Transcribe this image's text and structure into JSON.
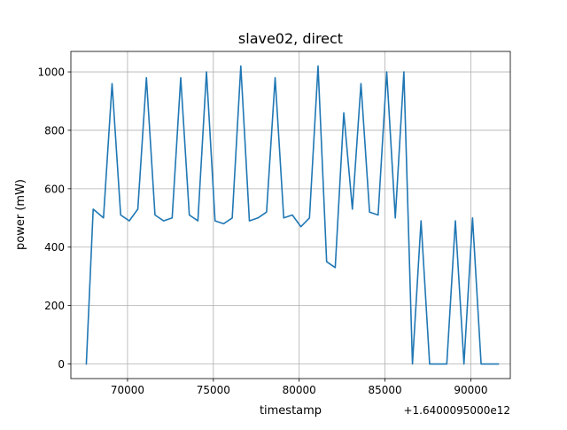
{
  "chart_data": {
    "type": "line",
    "title": "slave02, direct",
    "xlabel": "timestamp",
    "ylabel": "power (mW)",
    "x_offset_text": "+1.6400095000e12",
    "xlim": [
      66700,
      92300
    ],
    "ylim": [
      -50,
      1070
    ],
    "x_ticks": [
      {
        "value": 70000,
        "label": "70000"
      },
      {
        "value": 75000,
        "label": "75000"
      },
      {
        "value": 80000,
        "label": "80000"
      },
      {
        "value": 85000,
        "label": "85000"
      },
      {
        "value": 90000,
        "label": "90000"
      }
    ],
    "y_ticks": [
      {
        "value": 0,
        "label": "0"
      },
      {
        "value": 200,
        "label": "200"
      },
      {
        "value": 400,
        "label": "400"
      },
      {
        "value": 600,
        "label": "600"
      },
      {
        "value": 800,
        "label": "800"
      },
      {
        "value": 1000,
        "label": "1000"
      }
    ],
    "grid": true,
    "series": [
      {
        "color": "#1f77b4",
        "points": [
          [
            67600,
            0
          ],
          [
            68000,
            530
          ],
          [
            68600,
            500
          ],
          [
            69100,
            960
          ],
          [
            69600,
            510
          ],
          [
            70100,
            490
          ],
          [
            70600,
            530
          ],
          [
            71100,
            980
          ],
          [
            71600,
            510
          ],
          [
            72100,
            490
          ],
          [
            72600,
            500
          ],
          [
            73100,
            980
          ],
          [
            73600,
            510
          ],
          [
            74100,
            490
          ],
          [
            74600,
            1000
          ],
          [
            75100,
            490
          ],
          [
            75600,
            480
          ],
          [
            76100,
            500
          ],
          [
            76600,
            1020
          ],
          [
            77100,
            490
          ],
          [
            77600,
            500
          ],
          [
            78100,
            520
          ],
          [
            78600,
            980
          ],
          [
            79100,
            500
          ],
          [
            79600,
            510
          ],
          [
            80100,
            470
          ],
          [
            80600,
            500
          ],
          [
            81100,
            1020
          ],
          [
            81600,
            350
          ],
          [
            82100,
            330
          ],
          [
            82600,
            860
          ],
          [
            83100,
            530
          ],
          [
            83600,
            960
          ],
          [
            84100,
            520
          ],
          [
            84600,
            510
          ],
          [
            85100,
            1000
          ],
          [
            85600,
            500
          ],
          [
            86100,
            1000
          ],
          [
            86600,
            0
          ],
          [
            87100,
            490
          ],
          [
            87600,
            0
          ],
          [
            88100,
            0
          ],
          [
            88600,
            0
          ],
          [
            89100,
            490
          ],
          [
            89600,
            0
          ],
          [
            90100,
            500
          ],
          [
            90600,
            0
          ],
          [
            91100,
            0
          ],
          [
            91600,
            0
          ]
        ]
      }
    ]
  }
}
